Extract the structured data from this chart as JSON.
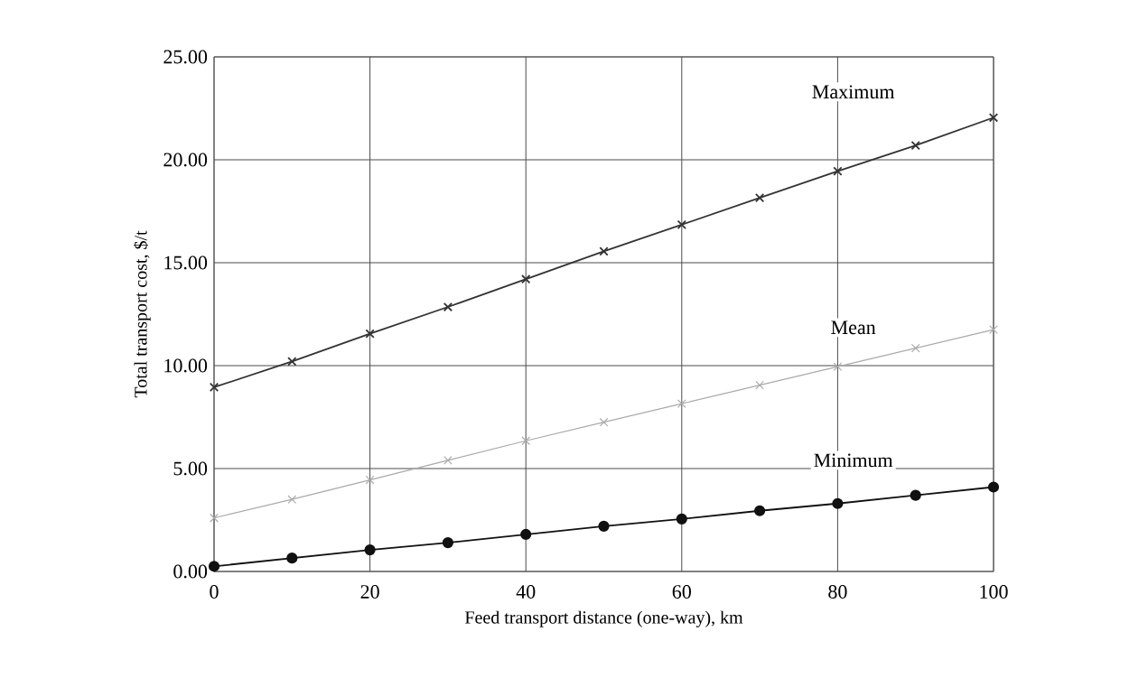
{
  "chart_data": {
    "type": "line",
    "xlabel": "Feed transport distance (one-way), km",
    "ylabel": "Total transport cost, $/t",
    "x": [
      0,
      10,
      20,
      30,
      40,
      50,
      60,
      70,
      80,
      90,
      100
    ],
    "xlim": [
      0,
      100
    ],
    "xticks": [
      0,
      20,
      40,
      60,
      80,
      100
    ],
    "ylim": [
      0,
      25
    ],
    "yticks": [
      {
        "value": 0,
        "label": "0.00"
      },
      {
        "value": 5,
        "label": "5.00"
      },
      {
        "value": 10,
        "label": "10.00"
      },
      {
        "value": 15,
        "label": "15.00"
      },
      {
        "value": 20,
        "label": "20.00"
      },
      {
        "value": 25,
        "label": "25.00"
      }
    ],
    "grid": true,
    "line_style": "solid",
    "series": [
      {
        "name": "Maximum",
        "color": "#333333",
        "marker": "cross",
        "values": [
          8.95,
          10.2,
          11.55,
          12.85,
          14.2,
          15.55,
          16.85,
          18.15,
          19.45,
          20.7,
          22.05
        ]
      },
      {
        "name": "Mean",
        "color": "#aaaaaa",
        "marker": "cross",
        "values": [
          2.6,
          3.5,
          4.45,
          5.4,
          6.35,
          7.25,
          8.15,
          9.05,
          9.95,
          10.85,
          11.75
        ]
      },
      {
        "name": "Minimum",
        "color": "#111111",
        "marker": "circle",
        "values": [
          0.25,
          0.65,
          1.05,
          1.4,
          1.8,
          2.2,
          2.55,
          2.95,
          3.3,
          3.7,
          4.1
        ]
      }
    ]
  }
}
